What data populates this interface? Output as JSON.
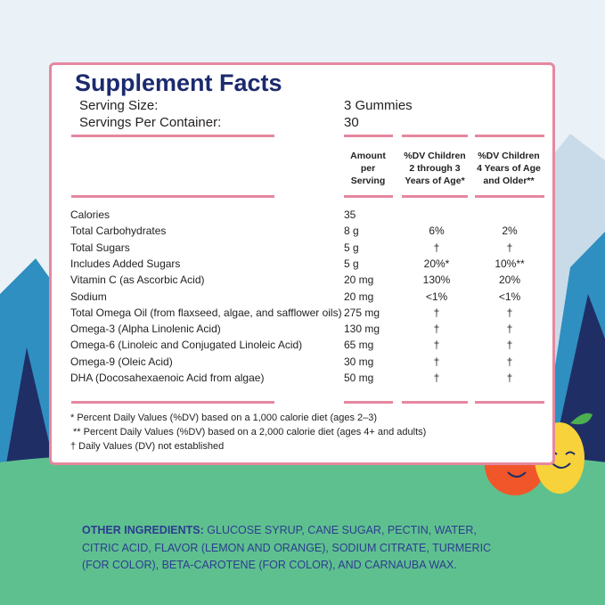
{
  "title": "Supplement Facts",
  "serving": {
    "label": "Serving Size:",
    "value": "3 Gummies"
  },
  "servings": {
    "label": "Servings Per Container:",
    "value": "30"
  },
  "columns": [
    [
      "Amount",
      "per",
      "Serving"
    ],
    [
      "%DV Children",
      "2 through 3",
      "Years of Age*"
    ],
    [
      "%DV Children",
      "4 Years of Age",
      "and Older**"
    ]
  ],
  "rows": [
    [
      "Calories",
      "35",
      "",
      ""
    ],
    [
      "Total Carbohydrates",
      "8 g",
      "6%",
      "2%"
    ],
    [
      "Total Sugars",
      "5 g",
      "†",
      "†"
    ],
    [
      "Includes Added Sugars",
      "5 g",
      "20%*",
      "10%**"
    ],
    [
      "Vitamin C (as Ascorbic Acid)",
      "20 mg",
      "130%",
      "20%"
    ],
    [
      "Sodium",
      "20 mg",
      "<1%",
      "<1%"
    ],
    [
      "Total Omega Oil (from flaxseed, algae, and safflower oils)",
      "275 mg",
      "†",
      "†"
    ],
    [
      "Omega-3 (Alpha Linolenic Acid)",
      "130 mg",
      "†",
      "†"
    ],
    [
      "Omega-6 (Linoleic and Conjugated Linoleic Acid)",
      "65 mg",
      "†",
      "†"
    ],
    [
      "Omega-9 (Oleic Acid)",
      "30 mg",
      "†",
      "†"
    ],
    [
      "DHA (Docosahexaenoic Acid from algae)",
      "50 mg",
      "†",
      "†"
    ]
  ],
  "footnotes": [
    "* Percent Daily Values (%DV) based on a 1,000 calorie diet (ages 2–3)",
    "** Percent Daily Values (%DV) based on a 2,000 calorie diet (ages 4+ and adults)",
    "† Daily Values (DV) not established"
  ],
  "ingredients": {
    "label": "OTHER INGREDIENTS:",
    "text": "GLUCOSE SYRUP, CANE SUGAR, PECTIN, WATER, CITRIC ACID, FLAVOR (LEMON AND ORANGE), SODIUM CITRATE, TURMERIC (FOR COLOR), BETA-CAROTENE (FOR COLOR), AND CARNAUBA WAX."
  }
}
